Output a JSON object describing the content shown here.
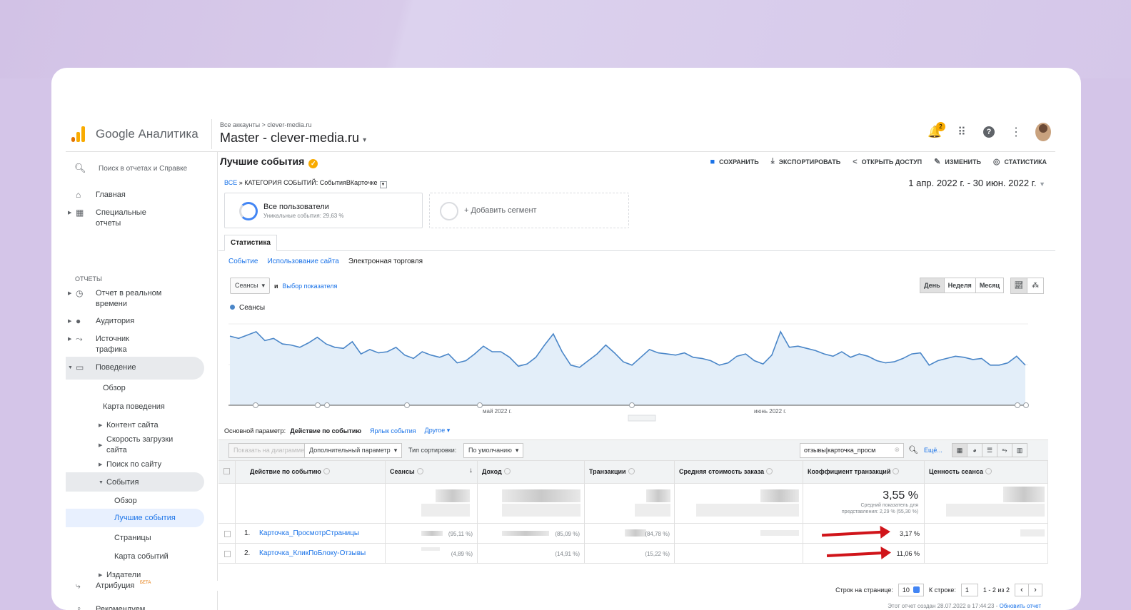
{
  "app": {
    "brand": "Google Аналитика",
    "crumb": "Все аккаунты > clever-media.ru",
    "property": "Master - clever-media.ru"
  },
  "topbar": {
    "notif_count": "2",
    "icons": [
      "bell-icon",
      "apps-icon",
      "help-icon",
      "more-icon",
      "avatar"
    ]
  },
  "sidebar": {
    "search_placeholder": "Поиск в отчетах и Справке",
    "home": "Главная",
    "custom": "Специальные отчеты",
    "reports_header": "ОТЧЕТЫ",
    "realtime": "Отчет в реальном времени",
    "audience": "Аудитория",
    "traffic": "Источник трафика",
    "behavior": "Поведение",
    "overview": "Обзор",
    "behavior_flow": "Карта поведения",
    "site_content": "Контент сайта",
    "site_speed": "Скорость загрузки сайта",
    "site_search": "Поиск по сайту",
    "events": "События",
    "events_overview": "Обзор",
    "top_events": "Лучшие события",
    "pages": "Страницы",
    "events_flow": "Карта событий",
    "publishers": "Издатели",
    "attribution": "Атрибуция",
    "beta": "БЕТА",
    "recommend": "Рекомендуем"
  },
  "page": {
    "title": "Лучшие события",
    "actions": {
      "save": "СОХРАНИТЬ",
      "export": "ЭКСПОРТИРОВАТЬ",
      "share": "ОТКРЫТЬ ДОСТУП",
      "edit": "ИЗМЕНИТЬ",
      "insights": "СТАТИСТИКА"
    },
    "breadcrumb_all": "ВСЕ",
    "breadcrumb_rest": "КАТЕГОРИЯ СОБЫТИЙ: СобытияВКарточке",
    "date_range": "1 апр. 2022 г. - 30 июн. 2022 г.",
    "segment_name": "Все пользователи",
    "segment_sub": "Уникальные события: 29,63 %",
    "add_segment": "+ Добавить сегмент",
    "tab": "Статистика",
    "subtabs": [
      "Событие",
      "Использование сайта",
      "Электронная торговля"
    ],
    "metric": "Сеансы",
    "and": "и",
    "choose_metric": "Выбор показателя",
    "period": [
      "День",
      "Неделя",
      "Месяц"
    ],
    "legend": "Сеансы",
    "month1": "май 2022 г.",
    "month2": "июнь 2022 г."
  },
  "chart_data": {
    "type": "area",
    "series": [
      {
        "name": "Сеансы",
        "values": [
          62,
          60,
          63,
          66,
          58,
          60,
          55,
          54,
          52,
          56,
          61,
          55,
          52,
          51,
          57,
          46,
          50,
          47,
          48,
          52,
          45,
          42,
          48,
          45,
          43,
          46,
          38,
          40,
          46,
          53,
          48,
          48,
          43,
          35,
          37,
          43,
          54,
          64,
          48,
          36,
          34,
          40,
          46,
          54,
          47,
          39,
          36,
          43,
          50,
          47,
          46,
          45,
          47,
          43,
          42,
          40,
          36,
          38,
          44,
          46,
          40,
          37,
          45,
          66,
          52,
          53,
          51,
          49,
          46,
          44,
          48,
          43,
          46,
          44,
          40,
          38,
          39,
          42,
          46,
          47,
          36,
          40,
          42,
          44,
          43,
          41,
          42,
          36,
          36,
          38,
          44,
          36
        ]
      }
    ],
    "ylim": [
      0,
      80
    ],
    "grid": true
  },
  "table": {
    "primary_label": "Основной параметр:",
    "primary_value": "Действие по событию",
    "alt1": "Ярлык события",
    "alt2": "Другое",
    "plot_rows": "Показать на диаграмме",
    "secondary": "Дополнительный параметр",
    "sort_label": "Тип сортировки:",
    "sort_value": "По умолчанию",
    "filter": "отзывы|карточка_просм",
    "more": "Ещё...",
    "headers": [
      "Действие по событию",
      "Сеансы",
      "Доход",
      "Транзакции",
      "Средняя стоимость заказа",
      "Коэффициент транзакций",
      "Ценность сеанса"
    ],
    "total_conv": "3,55 %",
    "total_conv_sub1": "Средний показатель для",
    "total_conv_sub2": "представления: 2,29 % (55,30 %)",
    "rows": [
      {
        "n": "1.",
        "name": "Карточка_ПросмотрСтраницы",
        "sessions_pct": "(95,11 %)",
        "revenue_pct": "(85,09 %)",
        "trans_pct": "(84,78 %)",
        "conv": "3,17 %"
      },
      {
        "n": "2.",
        "name": "Карточка_КликПоБлоку-Отзывы",
        "sessions_pct": "(4,89 %)",
        "revenue_pct": "(14,91 %)",
        "trans_pct": "(15,22 %)",
        "conv": "11,06 %"
      }
    ],
    "rows_per_page_label": "Строк на странице:",
    "rows_per_page": "10",
    "goto_label": "К строке:",
    "goto": "1",
    "range": "1 - 2 из 2",
    "footer": "Этот отчет создан 28.07.2022 в 17:44:23 - ",
    "refresh": "Обновить отчет"
  }
}
